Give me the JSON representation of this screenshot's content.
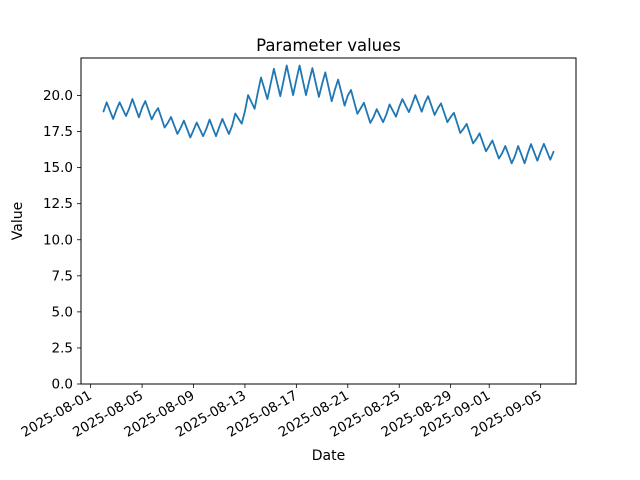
{
  "chart_data": {
    "type": "line",
    "title": "Parameter values",
    "xlabel": "Date",
    "ylabel": "Value",
    "series_name": "Parameter values",
    "series_color": "#1f77b4",
    "background_color": "#ffffff",
    "grid": false,
    "legend": false,
    "ylim": [
      0,
      22.6
    ],
    "y_tick_labels": [
      "0.0",
      "2.5",
      "5.0",
      "7.5",
      "10.0",
      "12.5",
      "15.0",
      "17.5",
      "20.0"
    ],
    "x_epoch_label": "2025-08-01",
    "xlim_days": [
      -0.75,
      37.75
    ],
    "x_tick_days": [
      0,
      4,
      8,
      12,
      16,
      20,
      24,
      28,
      31,
      35
    ],
    "x_tick_labels": [
      "2025-08-01",
      "2025-08-05",
      "2025-08-09",
      "2025-08-13",
      "2025-08-17",
      "2025-08-21",
      "2025-08-25",
      "2025-08-29",
      "2025-09-01",
      "2025-09-05"
    ],
    "x_start": "2025-08-02T00:00",
    "x_start_offset_days": 1,
    "x_step_hours": 6,
    "values": [
      18.9,
      19.53,
      18.95,
      18.38,
      19.0,
      19.53,
      19.05,
      18.58,
      19.1,
      19.76,
      19.13,
      18.49,
      19.15,
      19.61,
      18.98,
      18.34,
      18.8,
      19.13,
      18.45,
      17.78,
      18.1,
      18.51,
      17.93,
      17.34,
      17.75,
      18.26,
      17.68,
      17.09,
      17.6,
      18.13,
      17.65,
      17.18,
      17.7,
      18.33,
      17.75,
      17.18,
      17.8,
      18.38,
      17.85,
      17.33,
      17.9,
      18.75,
      18.4,
      18.05,
      18.9,
      20.03,
      19.55,
      19.08,
      20.2,
      21.25,
      20.5,
      19.75,
      20.8,
      21.85,
      20.9,
      19.95,
      21.0,
      22.08,
      21.05,
      20.03,
      21.1,
      22.08,
      21.05,
      20.03,
      21.0,
      21.9,
      20.9,
      19.9,
      20.8,
      21.6,
      20.6,
      19.6,
      20.4,
      21.1,
      20.2,
      19.3,
      20.0,
      20.38,
      19.55,
      18.73,
      19.1,
      19.5,
      18.8,
      18.1,
      18.5,
      19.05,
      18.6,
      18.15,
      18.7,
      19.38,
      18.95,
      18.53,
      19.2,
      19.75,
      19.3,
      18.85,
      19.4,
      20.03,
      19.45,
      18.88,
      19.5,
      19.95,
      19.3,
      18.65,
      19.1,
      19.45,
      18.8,
      18.15,
      18.5,
      18.8,
      18.1,
      17.4,
      17.7,
      18.03,
      17.35,
      16.68,
      17.0,
      17.38,
      16.75,
      16.13,
      16.5,
      16.88,
      16.25,
      15.63,
      16.0,
      16.5,
      15.9,
      15.3,
      15.8,
      16.5,
      15.9,
      15.3,
      16.0,
      16.63,
      16.05,
      15.48,
      16.1,
      16.65,
      16.1,
      15.55,
      16.1
    ]
  }
}
